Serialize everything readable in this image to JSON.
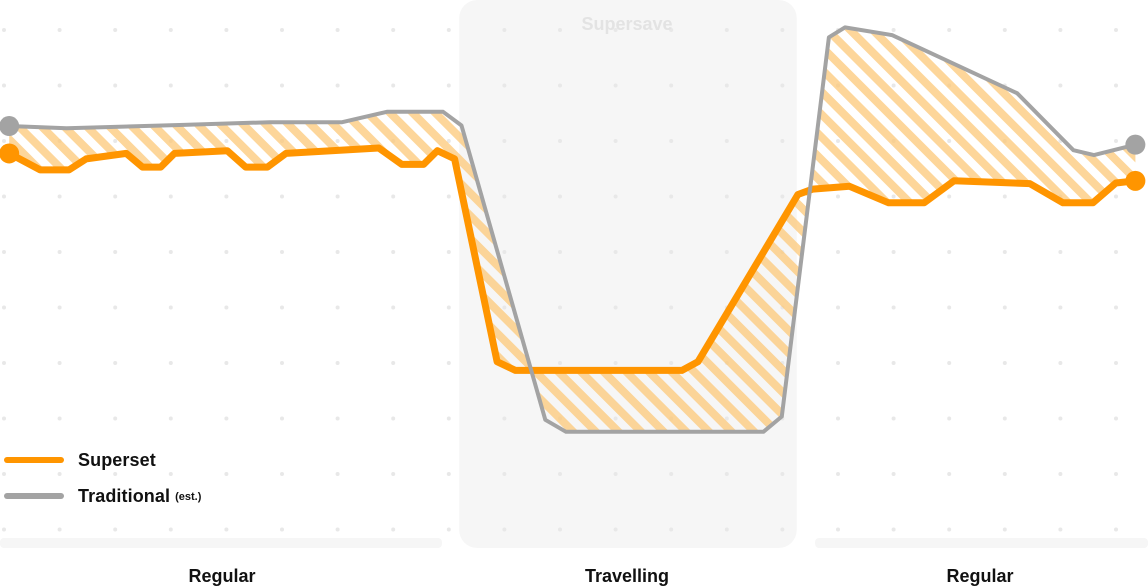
{
  "chart_data": {
    "type": "line",
    "title": "",
    "xlabel": "",
    "ylabel": "",
    "x_range": [
      0,
      100
    ],
    "y_range": [
      0,
      100
    ],
    "grid": "dotted",
    "legend_placement": "bottom-left",
    "highlight_band": {
      "label": "Supersave",
      "x_start": 40,
      "x_end": 69.4,
      "color": "#f6f6f6"
    },
    "phases": [
      {
        "label": "Regular",
        "x_start": 0,
        "x_end": 38.5
      },
      {
        "label": "Travelling",
        "x_start": 40,
        "x_end": 69.4
      },
      {
        "label": "Regular",
        "x_start": 71,
        "x_end": 100
      }
    ],
    "fill_between": {
      "color": "#fcc878",
      "pattern": "diagonal-stripes"
    },
    "series": [
      {
        "name": "Superset",
        "note": "",
        "color": "#ff9500",
        "points": [
          [
            0.8,
            72
          ],
          [
            3.5,
            69
          ],
          [
            6,
            69
          ],
          [
            7.5,
            71
          ],
          [
            11,
            72
          ],
          [
            12.4,
            69.5
          ],
          [
            14,
            69.5
          ],
          [
            15.2,
            72
          ],
          [
            19.8,
            72.5
          ],
          [
            21.4,
            69.5
          ],
          [
            23.3,
            69.5
          ],
          [
            24.9,
            72
          ],
          [
            33,
            73
          ],
          [
            35,
            70
          ],
          [
            36.9,
            70
          ],
          [
            38.1,
            72.5
          ],
          [
            39.6,
            71
          ],
          [
            43.3,
            34
          ],
          [
            44.9,
            32.4
          ],
          [
            59.4,
            32.4
          ],
          [
            60.8,
            34
          ],
          [
            69.5,
            64.5
          ],
          [
            70.8,
            65.5
          ],
          [
            74,
            66
          ],
          [
            77.4,
            63
          ],
          [
            80.5,
            63
          ],
          [
            83.1,
            67
          ],
          [
            89.7,
            66.5
          ],
          [
            92.6,
            63
          ],
          [
            95.2,
            63
          ],
          [
            97.2,
            66.6
          ],
          [
            98.9,
            67
          ]
        ]
      },
      {
        "name": "Traditional",
        "note": "(est.)",
        "color": "#a3a3a3",
        "points": [
          [
            0.8,
            77
          ],
          [
            5.8,
            76.6
          ],
          [
            16,
            77.2
          ],
          [
            23.5,
            77.7
          ],
          [
            29.8,
            77.7
          ],
          [
            33.7,
            79.6
          ],
          [
            38.6,
            79.6
          ],
          [
            40.2,
            77.1
          ],
          [
            47.5,
            23.4
          ],
          [
            49.3,
            21.2
          ],
          [
            66.5,
            21.2
          ],
          [
            68.1,
            24
          ],
          [
            72.2,
            93.2
          ],
          [
            73.6,
            95
          ],
          [
            77.7,
            93.6
          ],
          [
            88.6,
            83
          ],
          [
            93.5,
            72.6
          ],
          [
            95.3,
            71.7
          ],
          [
            98.9,
            73.6
          ]
        ]
      }
    ]
  }
}
